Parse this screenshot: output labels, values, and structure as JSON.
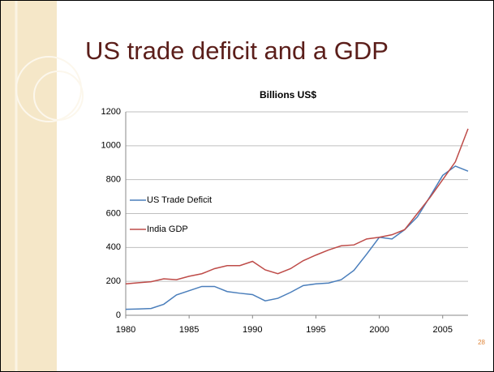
{
  "slide": {
    "title": "US trade deficit and a GDP",
    "page_number": "28"
  },
  "chart_data": {
    "type": "line",
    "title": "Billions US$",
    "x": [
      1980,
      1981,
      1982,
      1983,
      1984,
      1985,
      1986,
      1987,
      1988,
      1989,
      1990,
      1991,
      1992,
      1993,
      1994,
      1995,
      1996,
      1997,
      1998,
      1999,
      2000,
      2001,
      2002,
      2003,
      2004,
      2005,
      2006,
      2007
    ],
    "series": [
      {
        "name": "US Trade Deficit",
        "color": "#4a7ebb",
        "values": [
          35,
          37,
          40,
          65,
          120,
          145,
          170,
          170,
          140,
          130,
          122,
          85,
          100,
          135,
          175,
          185,
          190,
          210,
          265,
          360,
          460,
          450,
          505,
          580,
          700,
          825,
          880,
          850
        ]
      },
      {
        "name": "India GDP",
        "color": "#be4b48",
        "values": [
          185,
          192,
          198,
          215,
          210,
          230,
          245,
          275,
          293,
          293,
          318,
          268,
          245,
          275,
          322,
          355,
          385,
          410,
          415,
          450,
          460,
          475,
          505,
          600,
          695,
          800,
          905,
          1100
        ]
      }
    ],
    "xlim": [
      1980,
      2007
    ],
    "xticks": [
      1980,
      1985,
      1990,
      1995,
      2000,
      2005
    ],
    "ylim": [
      0,
      1200
    ],
    "yticks": [
      0,
      200,
      400,
      600,
      800,
      1000,
      1200
    ],
    "grid": true,
    "legend": "left"
  }
}
